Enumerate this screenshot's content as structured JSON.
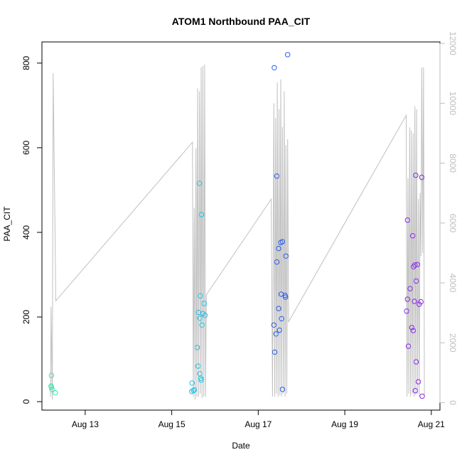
{
  "chart_data": {
    "type": "scatter",
    "title": "ATOM1 Northbound PAA_CIT",
    "xlabel": "Date",
    "ylabel": "PAA_CIT",
    "x_ticks": [
      "Aug 13",
      "Aug 15",
      "Aug 17",
      "Aug 19",
      "Aug 21"
    ],
    "x_tick_values": [
      13,
      15,
      17,
      19,
      21
    ],
    "xlim": [
      12.0,
      21.2
    ],
    "y_ticks": [
      "0",
      "200",
      "400",
      "600",
      "800"
    ],
    "y_tick_values": [
      0,
      200,
      400,
      600,
      800
    ],
    "ylim": [
      -20,
      850
    ],
    "y2_ticks": [
      "0",
      "2000",
      "4000",
      "6000",
      "8000",
      "10000",
      "12000"
    ],
    "y2_tick_values": [
      0,
      2000,
      4000,
      6000,
      8000,
      10000,
      12000
    ],
    "y2lim": [
      -250,
      12050
    ],
    "line_color": "#c0c0c0",
    "right_axis_color": "#bebebe",
    "grid": false,
    "legend": "none",
    "points": [
      {
        "x": 12.22,
        "y": 62,
        "color": "#33e8b0"
      },
      {
        "x": 12.21,
        "y": 37,
        "color": "#33e8b0"
      },
      {
        "x": 12.22,
        "y": 34,
        "color": "#33e8b0"
      },
      {
        "x": 12.23,
        "y": 29,
        "color": "#33e8b0"
      },
      {
        "x": 12.31,
        "y": 21,
        "color": "#33e8b0"
      },
      {
        "x": 15.47,
        "y": 44,
        "color": "#1ec4e6"
      },
      {
        "x": 15.46,
        "y": 24,
        "color": "#1ec4e6"
      },
      {
        "x": 15.5,
        "y": 26,
        "color": "#1ec4e6"
      },
      {
        "x": 15.52,
        "y": 28,
        "color": "#1ec4e6"
      },
      {
        "x": 15.59,
        "y": 128,
        "color": "#1ec4e6"
      },
      {
        "x": 15.61,
        "y": 84,
        "color": "#1ec4e6"
      },
      {
        "x": 15.62,
        "y": 211,
        "color": "#1ec4e6"
      },
      {
        "x": 15.64,
        "y": 516,
        "color": "#1ec4e6"
      },
      {
        "x": 15.65,
        "y": 197,
        "color": "#1ec4e6"
      },
      {
        "x": 15.65,
        "y": 66,
        "color": "#1ec4e6"
      },
      {
        "x": 15.66,
        "y": 250,
        "color": "#1ec4e6"
      },
      {
        "x": 15.67,
        "y": 55,
        "color": "#1ec4e6"
      },
      {
        "x": 15.68,
        "y": 51,
        "color": "#1ec4e6"
      },
      {
        "x": 15.69,
        "y": 442,
        "color": "#1ec4e6"
      },
      {
        "x": 15.7,
        "y": 181,
        "color": "#1ec4e6"
      },
      {
        "x": 15.72,
        "y": 208,
        "color": "#1ec4e6"
      },
      {
        "x": 15.75,
        "y": 232,
        "color": "#1ec4e6"
      },
      {
        "x": 15.77,
        "y": 204,
        "color": "#1ec4e6"
      },
      {
        "x": 17.37,
        "y": 789,
        "color": "#2a5ee8"
      },
      {
        "x": 17.36,
        "y": 181,
        "color": "#2a5ee8"
      },
      {
        "x": 17.38,
        "y": 117,
        "color": "#2a5ee8"
      },
      {
        "x": 17.41,
        "y": 160,
        "color": "#2a5ee8"
      },
      {
        "x": 17.43,
        "y": 533,
        "color": "#2a5ee8"
      },
      {
        "x": 17.43,
        "y": 330,
        "color": "#2a5ee8"
      },
      {
        "x": 17.47,
        "y": 362,
        "color": "#2a5ee8"
      },
      {
        "x": 17.47,
        "y": 220,
        "color": "#2a5ee8"
      },
      {
        "x": 17.49,
        "y": 169,
        "color": "#2a5ee8"
      },
      {
        "x": 17.52,
        "y": 376,
        "color": "#2a5ee8"
      },
      {
        "x": 17.53,
        "y": 254,
        "color": "#2a5ee8"
      },
      {
        "x": 17.54,
        "y": 196,
        "color": "#2a5ee8"
      },
      {
        "x": 17.56,
        "y": 378,
        "color": "#2a5ee8"
      },
      {
        "x": 17.56,
        "y": 29,
        "color": "#2a5ee8"
      },
      {
        "x": 17.62,
        "y": 251,
        "color": "#2a5ee8"
      },
      {
        "x": 17.63,
        "y": 247,
        "color": "#2a5ee8"
      },
      {
        "x": 17.64,
        "y": 344,
        "color": "#2a5ee8"
      },
      {
        "x": 17.68,
        "y": 820,
        "color": "#2a5ee8"
      },
      {
        "x": 20.43,
        "y": 214,
        "color": "#8a2be2"
      },
      {
        "x": 20.45,
        "y": 429,
        "color": "#8a2be2"
      },
      {
        "x": 20.45,
        "y": 242,
        "color": "#8a2be2"
      },
      {
        "x": 20.47,
        "y": 131,
        "color": "#8a2be2"
      },
      {
        "x": 20.51,
        "y": 267,
        "color": "#8a2be2"
      },
      {
        "x": 20.55,
        "y": 175,
        "color": "#8a2be2"
      },
      {
        "x": 20.57,
        "y": 392,
        "color": "#8a2be2"
      },
      {
        "x": 20.58,
        "y": 168,
        "color": "#8a2be2"
      },
      {
        "x": 20.59,
        "y": 319,
        "color": "#8a2be2"
      },
      {
        "x": 20.61,
        "y": 237,
        "color": "#8a2be2"
      },
      {
        "x": 20.62,
        "y": 323,
        "color": "#8a2be2"
      },
      {
        "x": 20.63,
        "y": 26,
        "color": "#8a2be2"
      },
      {
        "x": 20.64,
        "y": 535,
        "color": "#8a2be2"
      },
      {
        "x": 20.65,
        "y": 285,
        "color": "#8a2be2"
      },
      {
        "x": 20.65,
        "y": 94,
        "color": "#8a2be2"
      },
      {
        "x": 20.68,
        "y": 324,
        "color": "#8a2be2"
      },
      {
        "x": 20.7,
        "y": 47,
        "color": "#8a2be2"
      },
      {
        "x": 20.72,
        "y": 230,
        "color": "#8a2be2"
      },
      {
        "x": 20.76,
        "y": 236,
        "color": "#8a2be2"
      },
      {
        "x": 20.78,
        "y": 530,
        "color": "#8a2be2"
      },
      {
        "x": 20.79,
        "y": 13,
        "color": "#8a2be2"
      }
    ],
    "line_series": {
      "axis": "right",
      "x": [
        12.2,
        12.21,
        12.24,
        12.26,
        12.3,
        12.32,
        15.48,
        15.5,
        15.52,
        15.54,
        15.56,
        15.58,
        15.6,
        15.62,
        15.64,
        15.66,
        15.68,
        15.7,
        15.72,
        15.74,
        15.76,
        15.78,
        15.8,
        17.3,
        17.33,
        17.36,
        17.38,
        17.4,
        17.42,
        17.44,
        17.46,
        17.48,
        17.5,
        17.52,
        17.54,
        17.56,
        17.58,
        17.6,
        17.62,
        17.64,
        17.66,
        17.68,
        17.7,
        20.42,
        20.44,
        20.46,
        20.48,
        20.5,
        20.52,
        20.54,
        20.56,
        20.58,
        20.6,
        20.62,
        20.64,
        20.66,
        20.68,
        20.7,
        20.72,
        20.74,
        20.76,
        20.78,
        20.8,
        20.82,
        20.84
      ],
      "y": [
        200,
        3200,
        100,
        11000,
        6000,
        3400,
        8700,
        200,
        6500,
        100,
        8500,
        200,
        10500,
        200,
        10400,
        300,
        11200,
        150,
        11250,
        200,
        11300,
        200,
        3600,
        6800,
        200,
        10000,
        200,
        9500,
        300,
        10700,
        200,
        9800,
        250,
        10800,
        200,
        9200,
        300,
        10400,
        200,
        8600,
        300,
        8800,
        2700,
        9600,
        200,
        7500,
        300,
        9200,
        200,
        9100,
        300,
        9000,
        200,
        9900,
        250,
        9800,
        300,
        6800,
        200,
        7000,
        4900,
        11200,
        5000,
        11200,
        200
      ]
    }
  }
}
